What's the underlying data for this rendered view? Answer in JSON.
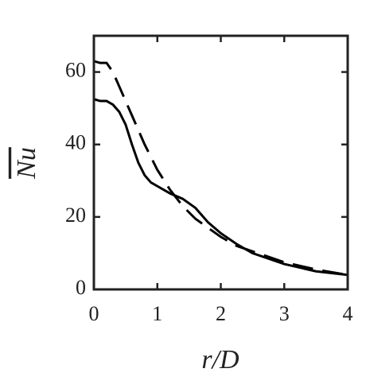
{
  "chart_data": {
    "type": "line",
    "xlabel": "r/D",
    "ylabel": "Nu",
    "x": [
      0,
      0.1,
      0.2,
      0.3,
      0.4,
      0.5,
      0.6,
      0.7,
      0.8,
      0.9,
      1.0,
      1.2,
      1.4,
      1.6,
      1.8,
      2.0,
      2.25,
      2.5,
      3.0,
      3.5,
      4.0
    ],
    "series": [
      {
        "color": "#000000",
        "style": "solid",
        "values": [
          52.5,
          52,
          52,
          51,
          49,
          45.5,
          40,
          35,
          31.5,
          29.5,
          28.5,
          26.5,
          25,
          22.5,
          18.5,
          15.5,
          12.5,
          10,
          7,
          5,
          4
        ]
      },
      {
        "color": "#000000",
        "style": "dashed",
        "values": [
          63,
          62.5,
          62.5,
          60,
          56,
          52,
          48,
          44,
          40,
          36.5,
          33,
          27.5,
          23,
          19.5,
          17,
          14.5,
          12,
          10.5,
          7.5,
          5.5,
          4
        ]
      }
    ],
    "xlim": [
      0,
      4
    ],
    "xticks": [
      0,
      1,
      2,
      3,
      4
    ],
    "ylim": [
      0,
      70
    ],
    "yticks": [
      0,
      20,
      40,
      60
    ]
  }
}
